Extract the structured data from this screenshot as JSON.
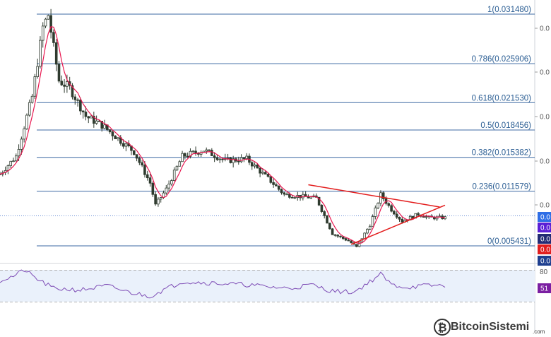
{
  "chart_data": [
    {
      "type": "candlestick",
      "title": "",
      "y_axis_position": "right",
      "y_tick_labels": [
        "0.0",
        "0.0",
        "0.0",
        "0.0",
        "0.0",
        "0.0"
      ],
      "fibonacci_levels": [
        {
          "ratio": "1",
          "price": "0.031480",
          "label": "1(0.031480)"
        },
        {
          "ratio": "0.786",
          "price": "0.025906",
          "label": "0.786(0.025906)"
        },
        {
          "ratio": "0.618",
          "price": "0.021530",
          "label": "0.618(0.021530)"
        },
        {
          "ratio": "0.5",
          "price": "0.018456",
          "label": "0.5(0.018456)"
        },
        {
          "ratio": "0.382",
          "price": "0.015382",
          "label": "0.382(0.015382)"
        },
        {
          "ratio": "0.236",
          "price": "0.011579",
          "label": "0.236(0.011579)"
        },
        {
          "ratio": "0",
          "price": "0.005431",
          "label": "0(0.005431)"
        }
      ],
      "price_key_points": [
        {
          "t": 0,
          "p": 0.0135
        },
        {
          "t": 6,
          "p": 0.0155
        },
        {
          "t": 12,
          "p": 0.0222
        },
        {
          "t": 16,
          "p": 0.03
        },
        {
          "t": 18,
          "p": 0.0314
        },
        {
          "t": 22,
          "p": 0.024
        },
        {
          "t": 26,
          "p": 0.0232
        },
        {
          "t": 32,
          "p": 0.02
        },
        {
          "t": 38,
          "p": 0.019
        },
        {
          "t": 44,
          "p": 0.0175
        },
        {
          "t": 50,
          "p": 0.016
        },
        {
          "t": 56,
          "p": 0.0125
        },
        {
          "t": 58,
          "p": 0.01
        },
        {
          "t": 62,
          "p": 0.0118
        },
        {
          "t": 68,
          "p": 0.0155
        },
        {
          "t": 76,
          "p": 0.0162
        },
        {
          "t": 84,
          "p": 0.015
        },
        {
          "t": 92,
          "p": 0.0152
        },
        {
          "t": 100,
          "p": 0.013
        },
        {
          "t": 106,
          "p": 0.0112
        },
        {
          "t": 112,
          "p": 0.011
        },
        {
          "t": 118,
          "p": 0.0108
        },
        {
          "t": 124,
          "p": 0.0068
        },
        {
          "t": 130,
          "p": 0.006
        },
        {
          "t": 133,
          "p": 0.0053
        },
        {
          "t": 138,
          "p": 0.0078
        },
        {
          "t": 142,
          "p": 0.0112
        },
        {
          "t": 146,
          "p": 0.0095
        },
        {
          "t": 150,
          "p": 0.0082
        },
        {
          "t": 156,
          "p": 0.009
        },
        {
          "t": 160,
          "p": 0.0086
        }
      ],
      "triangle": {
        "upper_line": [
          {
            "t": 115,
            "p": 0.0123
          },
          {
            "t": 164,
            "p": 0.0098
          }
        ],
        "lower_line": [
          {
            "t": 131,
            "p": 0.0056
          },
          {
            "t": 166,
            "p": 0.01
          }
        ]
      },
      "moving_average": {
        "color": "#e8174f"
      },
      "price_badges": [
        {
          "text": "0.0",
          "color": "#2f6ee6"
        },
        {
          "text": "0.0",
          "color": "#5b1fd6"
        },
        {
          "text": "0.0",
          "color": "#222b74"
        },
        {
          "text": "0.0",
          "color": "#e11d1d"
        },
        {
          "text": "0.0",
          "color": "#1e3f8f"
        }
      ]
    },
    {
      "type": "line",
      "indicator": "oscillator",
      "y_tick_labels": [
        "80"
      ],
      "badge": {
        "text": "51",
        "color": "#7b1fa2"
      },
      "line_color": "#7d4bb5",
      "band_color": "#eaf1fb",
      "key_points": [
        {
          "t": 0,
          "v": 60
        },
        {
          "t": 5,
          "v": 68
        },
        {
          "t": 9,
          "v": 80
        },
        {
          "t": 14,
          "v": 62
        },
        {
          "t": 20,
          "v": 45
        },
        {
          "t": 30,
          "v": 42
        },
        {
          "t": 40,
          "v": 50
        },
        {
          "t": 48,
          "v": 38
        },
        {
          "t": 56,
          "v": 30
        },
        {
          "t": 60,
          "v": 40
        },
        {
          "t": 68,
          "v": 58
        },
        {
          "t": 80,
          "v": 55
        },
        {
          "t": 92,
          "v": 52
        },
        {
          "t": 100,
          "v": 48
        },
        {
          "t": 108,
          "v": 45
        },
        {
          "t": 116,
          "v": 52
        },
        {
          "t": 124,
          "v": 40
        },
        {
          "t": 132,
          "v": 38
        },
        {
          "t": 138,
          "v": 58
        },
        {
          "t": 142,
          "v": 72
        },
        {
          "t": 146,
          "v": 52
        },
        {
          "t": 152,
          "v": 47
        },
        {
          "t": 158,
          "v": 50
        },
        {
          "t": 166,
          "v": 51
        }
      ]
    }
  ],
  "watermark": {
    "name": "BitcoinSistemi",
    "tld": ".com"
  }
}
